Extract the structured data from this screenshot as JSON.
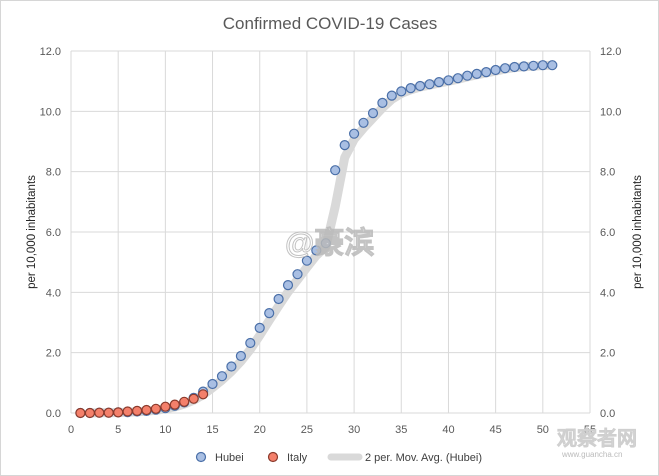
{
  "chart_data": {
    "type": "scatter",
    "title": "Confirmed COVID-19 Cases",
    "ylabel": "per 10,000 inhabitants",
    "ylabel_secondary": "per 10,000 inhabitants",
    "xlim": [
      0,
      55
    ],
    "ylim": [
      0,
      12
    ],
    "x_ticks": [
      "0",
      "5",
      "10",
      "15",
      "20",
      "25",
      "30",
      "35",
      "40",
      "45",
      "50",
      "55"
    ],
    "y_ticks": [
      "0.0",
      "2.0",
      "4.0",
      "6.0",
      "8.0",
      "10.0",
      "12.0"
    ],
    "grid": true,
    "legend_position": "bottom",
    "series": [
      {
        "name": "Hubei",
        "color": "#a9bfe3",
        "edge_color": "#4a6fa8",
        "x": [
          1,
          2,
          3,
          4,
          5,
          6,
          7,
          8,
          9,
          10,
          11,
          12,
          13,
          14,
          15,
          16,
          17,
          18,
          19,
          20,
          21,
          22,
          23,
          24,
          25,
          26,
          27,
          28,
          29,
          30,
          31,
          32,
          33,
          34,
          35,
          36,
          37,
          38,
          39,
          40,
          41,
          42,
          43,
          44,
          45,
          46,
          47,
          48,
          49,
          50,
          51
        ],
        "y": [
          0.0,
          0.0,
          0.01,
          0.01,
          0.02,
          0.03,
          0.05,
          0.07,
          0.11,
          0.16,
          0.24,
          0.35,
          0.5,
          0.71,
          0.96,
          1.22,
          1.54,
          1.89,
          2.32,
          2.82,
          3.31,
          3.78,
          4.24,
          4.6,
          5.05,
          5.39,
          5.63,
          8.05,
          8.88,
          9.26,
          9.62,
          9.94,
          10.28,
          10.52,
          10.66,
          10.77,
          10.84,
          10.9,
          10.97,
          11.03,
          11.1,
          11.18,
          11.24,
          11.3,
          11.37,
          11.43,
          11.47,
          11.49,
          11.51,
          11.53,
          11.53
        ]
      },
      {
        "name": "Italy",
        "color": "#f4806b",
        "edge_color": "#8a3a2c",
        "x": [
          1,
          2,
          3,
          4,
          5,
          6,
          7,
          8,
          9,
          10,
          11,
          12,
          13,
          14
        ],
        "y": [
          0.0,
          0.0,
          0.01,
          0.01,
          0.02,
          0.05,
          0.07,
          0.1,
          0.14,
          0.21,
          0.28,
          0.37,
          0.47,
          0.62
        ]
      },
      {
        "name": "2 per. Mov. Avg. (Hubei)",
        "type": "line",
        "color": "#d9d9d9"
      }
    ]
  },
  "watermark": {
    "handle": "@豪滨",
    "site": "观察者网",
    "site_url": "www.guancha.cn"
  }
}
